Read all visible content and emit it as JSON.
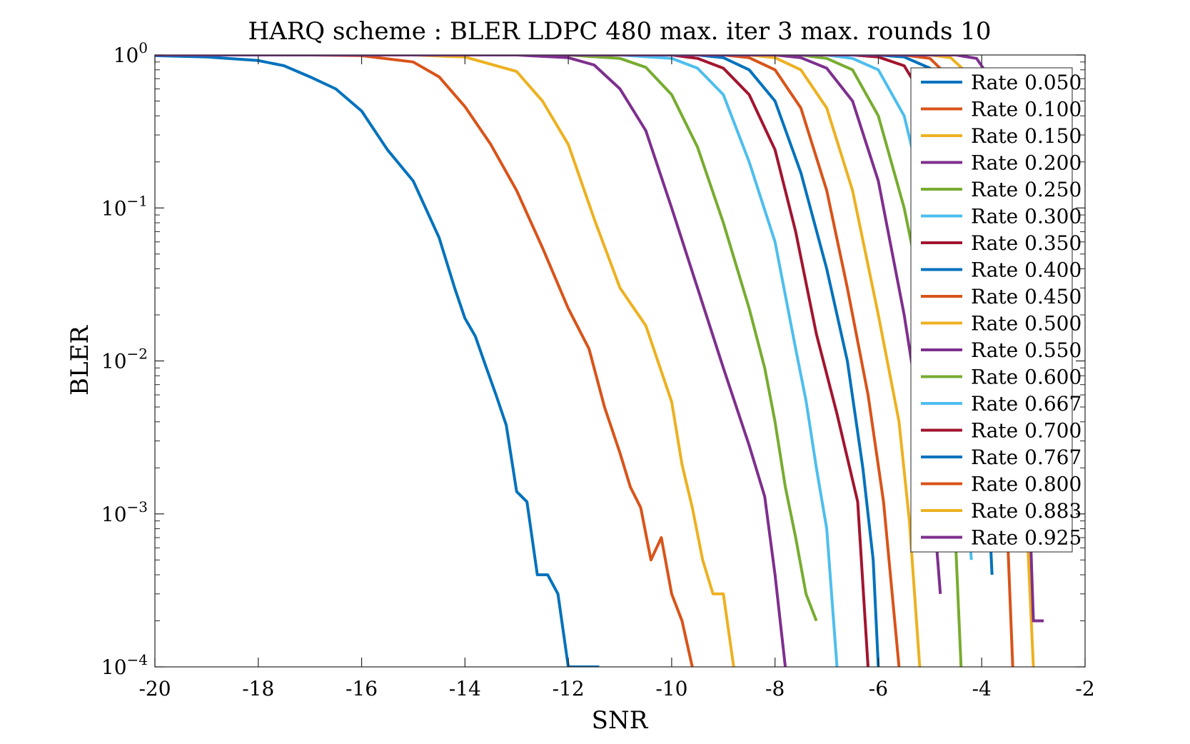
{
  "chart_data": {
    "type": "line",
    "title": "HARQ scheme : BLER LDPC 480 max. iter 3 max. rounds 10",
    "xlabel": "SNR",
    "ylabel": "BLER",
    "xlim": [
      -20,
      -2
    ],
    "ylim": [
      0.0001,
      1
    ],
    "yscale": "log",
    "grid": false,
    "legend_position": "top-right",
    "x_ticks": [
      "-20",
      "-18",
      "-16",
      "-14",
      "-12",
      "-10",
      "-8",
      "-6",
      "-4",
      "-2"
    ],
    "y_ticks": [
      {
        "base": "10",
        "exp": "0"
      },
      {
        "base": "10",
        "exp": "−1"
      },
      {
        "base": "10",
        "exp": "−2"
      },
      {
        "base": "10",
        "exp": "−3"
      },
      {
        "base": "10",
        "exp": "−4"
      }
    ],
    "series": [
      {
        "name": "Rate 0.050",
        "color": "#0072BD",
        "x": [
          -20,
          -19,
          -18,
          -17.5,
          -17,
          -16.5,
          -16,
          -15.5,
          -15,
          -14.5,
          -14.2,
          -14,
          -13.8,
          -13.6,
          -13.4,
          -13.2,
          -13.0,
          -12.8,
          -12.6,
          -12.4,
          -12.2,
          -12.0,
          -11.8,
          -11.6,
          -11.4
        ],
        "y": [
          0.99,
          0.97,
          0.92,
          0.85,
          0.72,
          0.6,
          0.43,
          0.24,
          0.15,
          0.064,
          0.03,
          0.019,
          0.0145,
          0.0093,
          0.006,
          0.0038,
          0.0014,
          0.0012,
          0.0004,
          0.0004,
          0.0003,
          0.0001,
          0.0001,
          0.0001,
          0.0001
        ]
      },
      {
        "name": "Rate 0.100",
        "color": "#D95319",
        "x": [
          -20,
          -17,
          -16,
          -15,
          -14.5,
          -14,
          -13.5,
          -13,
          -12.5,
          -12,
          -11.6,
          -11.3,
          -11.0,
          -10.8,
          -10.6,
          -10.4,
          -10.2,
          -10.0,
          -9.8,
          -9.6
        ],
        "y": [
          1,
          1,
          0.99,
          0.9,
          0.72,
          0.46,
          0.26,
          0.13,
          0.055,
          0.022,
          0.012,
          0.005,
          0.0025,
          0.0015,
          0.0011,
          0.0005,
          0.0007,
          0.0003,
          0.0002,
          0.0001
        ]
      },
      {
        "name": "Rate 0.150",
        "color": "#EDB120",
        "x": [
          -20,
          -15,
          -14,
          -13,
          -12.5,
          -12,
          -11.5,
          -11,
          -10.5,
          -10,
          -9.8,
          -9.6,
          -9.4,
          -9.2,
          -9.0,
          -8.8
        ],
        "y": [
          1,
          1,
          0.97,
          0.78,
          0.5,
          0.26,
          0.085,
          0.03,
          0.017,
          0.0054,
          0.0021,
          0.0011,
          0.0005,
          0.0003,
          0.0003,
          0.0001
        ]
      },
      {
        "name": "Rate 0.200",
        "color": "#7E2F8E",
        "x": [
          -20,
          -13,
          -12,
          -11.5,
          -11,
          -10.5,
          -10,
          -9.5,
          -9,
          -8.5,
          -8.2,
          -8.0,
          -7.8
        ],
        "y": [
          1,
          1,
          0.96,
          0.86,
          0.6,
          0.32,
          0.1,
          0.03,
          0.009,
          0.0028,
          0.0013,
          0.0004,
          0.0001
        ]
      },
      {
        "name": "Rate 0.250",
        "color": "#77AC30",
        "x": [
          -20,
          -12,
          -11,
          -10.5,
          -10,
          -9.5,
          -9,
          -8.5,
          -8.2,
          -8.0,
          -7.8,
          -7.6,
          -7.4,
          -7.2
        ],
        "y": [
          1,
          1,
          0.95,
          0.83,
          0.55,
          0.25,
          0.08,
          0.022,
          0.009,
          0.004,
          0.0015,
          0.0007,
          0.0003,
          0.0002
        ]
      },
      {
        "name": "Rate 0.300",
        "color": "#4DBEEE",
        "x": [
          -20,
          -11,
          -10,
          -9.5,
          -9,
          -8.5,
          -8.0,
          -7.6,
          -7.4,
          -7.2,
          -7.0,
          -6.8
        ],
        "y": [
          1,
          1,
          0.95,
          0.82,
          0.55,
          0.2,
          0.06,
          0.012,
          0.0055,
          0.002,
          0.0008,
          0.0001
        ]
      },
      {
        "name": "Rate 0.350",
        "color": "#A2142F",
        "x": [
          -20,
          -10,
          -9.5,
          -9,
          -8.5,
          -8.0,
          -7.6,
          -7.2,
          -6.8,
          -6.4,
          -6.2
        ],
        "y": [
          1,
          1,
          0.95,
          0.82,
          0.55,
          0.24,
          0.07,
          0.015,
          0.0045,
          0.0012,
          0.0001
        ]
      },
      {
        "name": "Rate 0.400",
        "color": "#0072BD",
        "x": [
          -20,
          -9.5,
          -9,
          -8.5,
          -8.0,
          -7.5,
          -7.0,
          -6.6,
          -6.3,
          -6.1,
          -6.0
        ],
        "y": [
          1,
          1,
          0.96,
          0.8,
          0.5,
          0.17,
          0.04,
          0.01,
          0.002,
          0.0005,
          0.0001
        ]
      },
      {
        "name": "Rate 0.450",
        "color": "#D95319",
        "x": [
          -20,
          -9,
          -8.5,
          -8.0,
          -7.5,
          -7.0,
          -6.6,
          -6.2,
          -5.9,
          -5.6
        ],
        "y": [
          1,
          1,
          0.96,
          0.8,
          0.45,
          0.13,
          0.03,
          0.006,
          0.0012,
          0.0001
        ]
      },
      {
        "name": "Rate 0.500",
        "color": "#EDB120",
        "x": [
          -20,
          -8.5,
          -8.0,
          -7.5,
          -7.0,
          -6.5,
          -6.0,
          -5.6,
          -5.4,
          -5.2
        ],
        "y": [
          1,
          1,
          0.96,
          0.8,
          0.45,
          0.13,
          0.02,
          0.004,
          0.0009,
          0.0001
        ]
      },
      {
        "name": "Rate 0.550",
        "color": "#7E2F8E",
        "x": [
          -20,
          -8.0,
          -7.5,
          -7.0,
          -6.5,
          -6.0,
          -5.5,
          -5.2,
          -5.0,
          -4.9,
          -4.8
        ],
        "y": [
          1,
          1,
          0.96,
          0.82,
          0.5,
          0.15,
          0.02,
          0.0045,
          0.0015,
          0.0008,
          0.0003
        ]
      },
      {
        "name": "Rate 0.600",
        "color": "#77AC30",
        "x": [
          -20,
          -7.5,
          -7.0,
          -6.5,
          -6.0,
          -5.5,
          -5.0,
          -4.6,
          -4.5,
          -4.4
        ],
        "y": [
          1,
          1,
          0.95,
          0.8,
          0.4,
          0.1,
          0.015,
          0.0016,
          0.0006,
          0.0001
        ]
      },
      {
        "name": "Rate 0.667",
        "color": "#4DBEEE",
        "x": [
          -20,
          -7.0,
          -6.5,
          -6.0,
          -5.5,
          -5.0,
          -4.6,
          -4.3,
          -4.2
        ],
        "y": [
          1,
          1,
          0.95,
          0.8,
          0.4,
          0.08,
          0.012,
          0.0015,
          0.0005
        ]
      },
      {
        "name": "Rate 0.700",
        "color": "#A2142F",
        "x": [
          -20,
          -6.5,
          -6.0,
          -5.5,
          -5.0,
          -4.6,
          -4.3,
          -4.1,
          -4.0
        ],
        "y": [
          1,
          1,
          0.97,
          0.85,
          0.45,
          0.1,
          0.02,
          0.005,
          0.002
        ]
      },
      {
        "name": "Rate 0.767",
        "color": "#0072BD",
        "x": [
          -20,
          -6.0,
          -5.5,
          -5.0,
          -4.6,
          -4.3,
          -4.0,
          -3.8
        ],
        "y": [
          1,
          1,
          0.97,
          0.82,
          0.4,
          0.1,
          0.01,
          0.0004
        ]
      },
      {
        "name": "Rate 0.800",
        "color": "#D95319",
        "x": [
          -20,
          -5.5,
          -5.0,
          -4.6,
          -4.2,
          -3.9,
          -3.6,
          -3.4
        ],
        "y": [
          1,
          1,
          0.95,
          0.7,
          0.3,
          0.05,
          0.005,
          0.0001
        ]
      },
      {
        "name": "Rate 0.883",
        "color": "#EDB120",
        "x": [
          -20,
          -5.0,
          -4.6,
          -4.2,
          -3.8,
          -3.5,
          -3.2,
          -3.0
        ],
        "y": [
          1,
          1,
          0.96,
          0.72,
          0.28,
          0.04,
          0.003,
          0.0001
        ]
      },
      {
        "name": "Rate 0.925",
        "color": "#7E2F8E",
        "x": [
          -20,
          -4.5,
          -4.1,
          -3.7,
          -3.4,
          -3.2,
          -3.0,
          -2.8
        ],
        "y": [
          1,
          1,
          0.95,
          0.6,
          0.12,
          0.02,
          0.0002,
          0.0002
        ]
      }
    ]
  }
}
